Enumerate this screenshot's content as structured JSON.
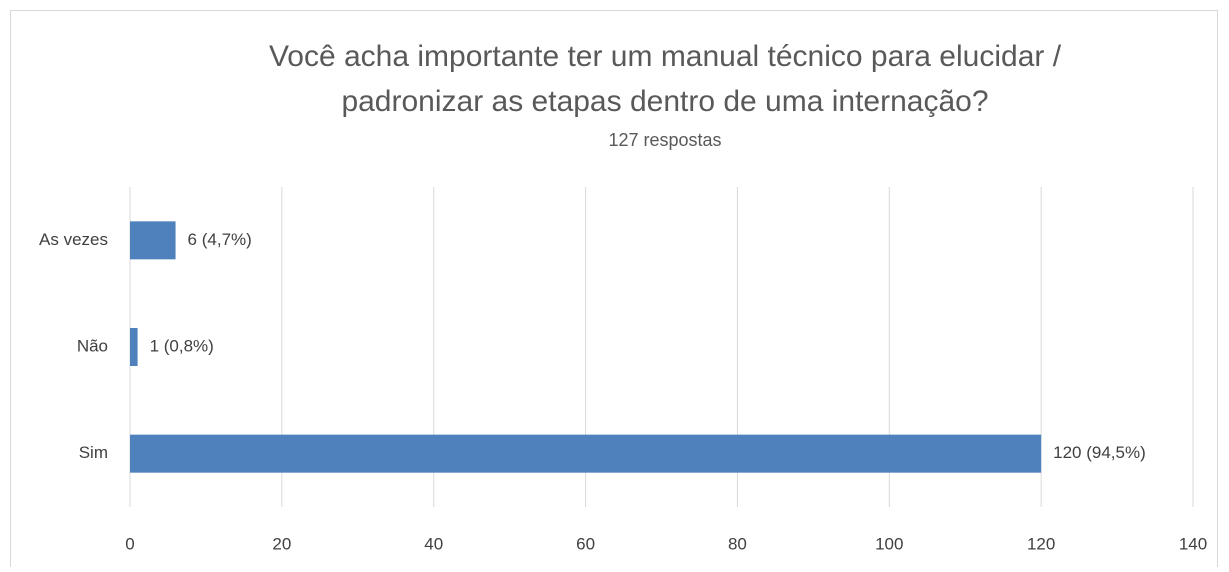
{
  "chart_data": {
    "type": "bar",
    "orientation": "horizontal",
    "title": [
      "Você acha importante ter um manual técnico para elucidar /",
      "padronizar as etapas dentro de uma internação?"
    ],
    "subtitle": "127 respostas",
    "categories": [
      "As vezes",
      "Não",
      "Sim"
    ],
    "values": [
      6,
      1,
      120
    ],
    "value_labels": [
      "6 (4,7%)",
      "1 (0,8%)",
      "120 (94,5%)"
    ],
    "color": "#4f81bd",
    "xlim": [
      0,
      140
    ],
    "xticks": [
      0,
      20,
      40,
      60,
      80,
      100,
      120,
      140
    ],
    "grid": true
  }
}
